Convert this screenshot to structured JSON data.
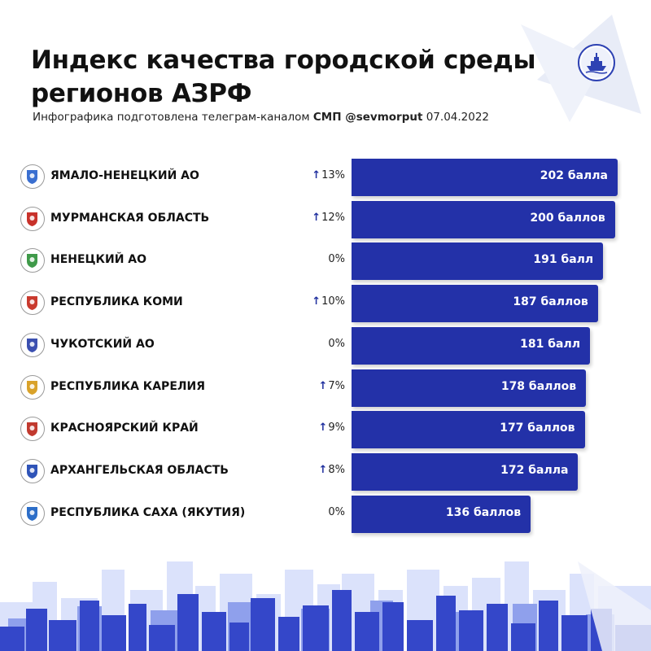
{
  "title_lines": [
    "Индекс качества городской среды",
    "регионов АЗРФ"
  ],
  "subtitle": {
    "prefix": "Инфографика подготовлена телеграм-каналом ",
    "channel": "СМП @sevmorput",
    "date": "07.04.2022"
  },
  "colors": {
    "bar": "#2331a8",
    "arrow": "#1f2f9e",
    "city_dark": "#3447c9",
    "city_light": "#dbe2fb"
  },
  "chart_data": {
    "type": "bar",
    "orientation": "horizontal",
    "title": "Индекс качества городской среды регионов АЗРФ",
    "categories": [
      "ЯМАЛО-НЕНЕЦКИЙ АО",
      "МУРМАНСКАЯ ОБЛАСТЬ",
      "НЕНЕЦКИЙ АО",
      "РЕСПУБЛИКА КОМИ",
      "ЧУКОТСКИЙ АО",
      "РЕСПУБЛИКА КАРЕЛИЯ",
      "КРАСНОЯРСКИЙ КРАЙ",
      "АРХАНГЕЛЬСКАЯ ОБЛАСТЬ",
      "РЕСПУБЛИКА САХА (ЯКУТИЯ)"
    ],
    "values": [
      202,
      200,
      191,
      187,
      181,
      178,
      177,
      172,
      136
    ],
    "value_labels": [
      "202 балла",
      "200 баллов",
      "191 балл",
      "187 баллов",
      "181 балл",
      "178 баллов",
      "177 баллов",
      "172 балла",
      "136 баллов"
    ],
    "changes": [
      "13%",
      "12%",
      "0%",
      "10%",
      "0%",
      "7%",
      "9%",
      "8%",
      "0%"
    ],
    "change_up": [
      true,
      true,
      false,
      true,
      false,
      true,
      true,
      true,
      false
    ],
    "emblems": [
      "yamal-emblem-icon",
      "murmansk-emblem-icon",
      "nenets-emblem-icon",
      "komi-emblem-icon",
      "chukotka-emblem-icon",
      "karelia-emblem-icon",
      "krasnoyarsk-emblem-icon",
      "arkhangelsk-emblem-icon",
      "sakha-emblem-icon"
    ],
    "emblem_colors": [
      "#3a6fd0",
      "#c8322b",
      "#3f9a4a",
      "#c93a2e",
      "#3b4fb0",
      "#d9a22a",
      "#c13a2f",
      "#2f54b8",
      "#2d6ec8"
    ],
    "xlim": [
      0,
      202
    ],
    "grid": false,
    "legend": "none"
  }
}
